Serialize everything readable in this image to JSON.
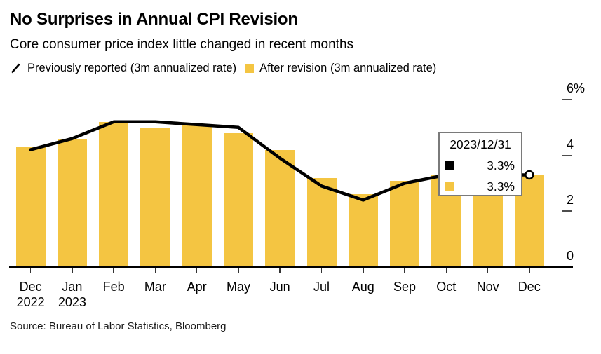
{
  "header": {
    "title": "No Surprises in Annual CPI Revision",
    "subtitle": "Core consumer price index little changed in recent months"
  },
  "legend": {
    "items": [
      {
        "label": "Previously reported (3m annualized rate)",
        "marker": "line-slash-icon",
        "color": "#000000"
      },
      {
        "label": "After revision (3m annualized rate)",
        "marker": "bar-square-icon",
        "color": "#F4C542"
      }
    ]
  },
  "tooltip": {
    "date": "2023/12/31",
    "rows": [
      {
        "series": "previously-reported",
        "value": "3.3%",
        "color": "#000000"
      },
      {
        "series": "after-revision",
        "value": "3.3%",
        "color": "#F4C542"
      }
    ]
  },
  "source": "Source: Bureau of Labor Statistics, Bloomberg",
  "colors": {
    "bar": "#F4C542",
    "line": "#000000",
    "ref_line": "#000000",
    "marker_fill": "#ffffff"
  },
  "chart_data": {
    "type": "bar",
    "title": "No Surprises in Annual CPI Revision",
    "subtitle": "Core consumer price index little changed in recent months",
    "categories": [
      "Dec 2022",
      "Jan 2023",
      "Feb",
      "Mar",
      "Apr",
      "May",
      "Jun",
      "Jul",
      "Aug",
      "Sep",
      "Oct",
      "Nov",
      "Dec"
    ],
    "x_labels": [
      {
        "month": "Dec",
        "year": "2022"
      },
      {
        "month": "Jan",
        "year": "2023"
      },
      {
        "month": "Feb"
      },
      {
        "month": "Mar"
      },
      {
        "month": "Apr"
      },
      {
        "month": "May"
      },
      {
        "month": "Jun"
      },
      {
        "month": "Jul"
      },
      {
        "month": "Aug"
      },
      {
        "month": "Sep"
      },
      {
        "month": "Oct"
      },
      {
        "month": "Nov"
      },
      {
        "month": "Dec"
      }
    ],
    "series": [
      {
        "name": "Previously reported (3m annualized rate)",
        "type": "line",
        "color": "#000000",
        "values": [
          4.2,
          4.6,
          5.2,
          5.2,
          5.1,
          5.0,
          3.9,
          2.9,
          2.4,
          3.0,
          3.3,
          3.3,
          3.3
        ]
      },
      {
        "name": "After revision (3m annualized rate)",
        "type": "bar",
        "color": "#F4C542",
        "values": [
          4.3,
          4.6,
          5.2,
          5.0,
          5.1,
          4.8,
          4.2,
          3.2,
          2.6,
          3.1,
          3.3,
          3.4,
          3.3
        ]
      }
    ],
    "ylabel": "",
    "xlabel": "",
    "ylim": [
      0,
      6.5
    ],
    "y_ticks": [
      0,
      2,
      4,
      6
    ],
    "y_tick_labels": [
      "0",
      "2",
      "4",
      "6%"
    ],
    "grid": false,
    "legend_position": "top",
    "reference_line_value": 3.3,
    "end_marker": {
      "category": "Dec",
      "value": 3.3
    }
  }
}
